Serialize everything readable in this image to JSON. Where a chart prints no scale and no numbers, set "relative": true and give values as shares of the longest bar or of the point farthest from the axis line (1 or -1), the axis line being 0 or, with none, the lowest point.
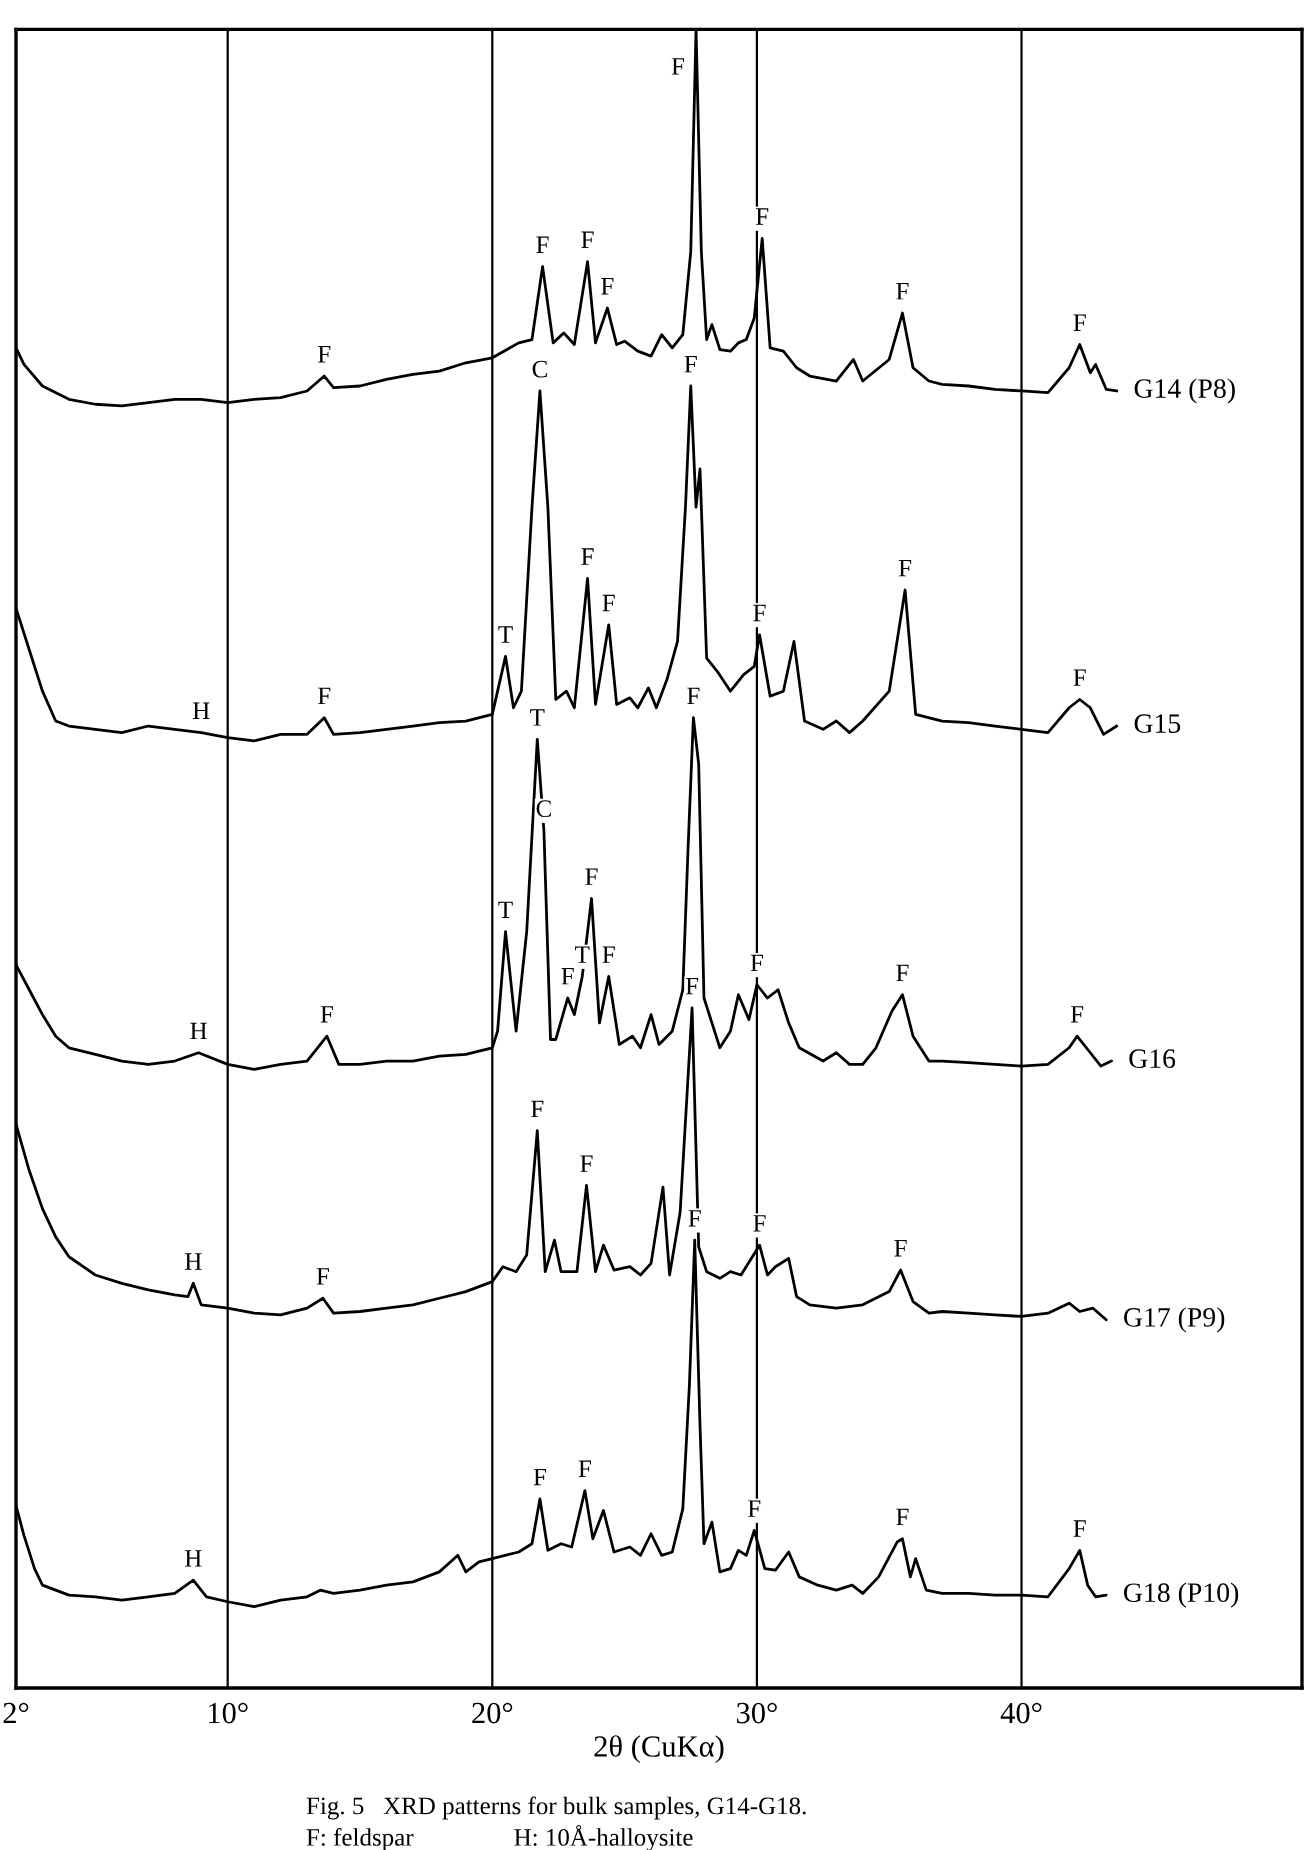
{
  "chart_data": {
    "type": "line",
    "relative": true,
    "xlabel": "2θ (CuKα)",
    "xlim": [
      2,
      50.6
    ],
    "xticks": [
      {
        "value": 2,
        "label": "2°"
      },
      {
        "value": 10,
        "label": "10°"
      },
      {
        "value": 20,
        "label": "20°"
      },
      {
        "value": 30,
        "label": "30°"
      },
      {
        "value": 40,
        "label": "40°"
      }
    ],
    "grid": "x",
    "legend": false,
    "marker": "none",
    "line_style": "solid",
    "series": [
      {
        "name": "G14 (P8)",
        "color": "#000000",
        "x": [
          2,
          2.3,
          3,
          4,
          5,
          6,
          7,
          8,
          9,
          10,
          11,
          12,
          13,
          13.65,
          14,
          15,
          16,
          17,
          18,
          19,
          20,
          21,
          21.5,
          21.9,
          22.3,
          22.7,
          23.1,
          23.6,
          23.9,
          24.35,
          24.7,
          25,
          25.5,
          26,
          26.4,
          26.8,
          27.2,
          27.5,
          27.7,
          27.9,
          28.1,
          28.3,
          28.6,
          29,
          29.3,
          29.6,
          29.9,
          30.2,
          30.5,
          31,
          31.5,
          32,
          33,
          33.65,
          34,
          35,
          35.5,
          35.9,
          36.5,
          37,
          38,
          39,
          40,
          41,
          41.8,
          42.2,
          42.6,
          42.8,
          43.2,
          43.6
        ],
        "values": [
          0.808,
          0.798,
          0.785,
          0.777,
          0.774,
          0.773,
          0.775,
          0.777,
          0.777,
          0.775,
          0.777,
          0.778,
          0.782,
          0.791,
          0.784,
          0.785,
          0.789,
          0.792,
          0.794,
          0.799,
          0.802,
          0.811,
          0.813,
          0.857,
          0.811,
          0.817,
          0.81,
          0.86,
          0.811,
          0.832,
          0.81,
          0.812,
          0.806,
          0.803,
          0.816,
          0.808,
          0.816,
          0.866,
          1.0,
          0.866,
          0.813,
          0.822,
          0.807,
          0.806,
          0.811,
          0.813,
          0.826,
          0.874,
          0.808,
          0.806,
          0.796,
          0.791,
          0.788,
          0.801,
          0.788,
          0.801,
          0.829,
          0.796,
          0.788,
          0.786,
          0.785,
          0.783,
          0.782,
          0.781,
          0.796,
          0.81,
          0.793,
          0.798,
          0.783,
          0.782
        ]
      },
      {
        "name": "G15",
        "color": "#000000",
        "x": [
          2,
          2.5,
          3,
          3.5,
          4,
          5,
          6,
          7,
          8,
          9,
          10,
          11,
          12,
          13,
          13.65,
          14,
          15,
          16,
          17,
          18,
          19,
          20,
          20.5,
          20.8,
          21.1,
          21.5,
          21.8,
          22.1,
          22.4,
          22.8,
          23.1,
          23.6,
          23.9,
          24.4,
          24.7,
          25.2,
          25.5,
          25.9,
          26.2,
          26.6,
          27,
          27.3,
          27.5,
          27.7,
          27.85,
          28.1,
          28.5,
          29,
          29.5,
          29.9,
          30.1,
          30.5,
          31,
          31.4,
          31.8,
          32.5,
          33,
          33.5,
          34,
          35,
          35.6,
          36,
          37,
          38,
          39,
          40,
          41,
          41.8,
          42.2,
          42.6,
          43.1,
          43.6
        ],
        "values": [
          0.651,
          0.626,
          0.601,
          0.583,
          0.58,
          0.578,
          0.576,
          0.58,
          0.578,
          0.576,
          0.573,
          0.571,
          0.575,
          0.575,
          0.585,
          0.575,
          0.576,
          0.578,
          0.58,
          0.582,
          0.583,
          0.587,
          0.622,
          0.591,
          0.601,
          0.712,
          0.782,
          0.712,
          0.596,
          0.601,
          0.591,
          0.669,
          0.593,
          0.641,
          0.593,
          0.597,
          0.591,
          0.603,
          0.591,
          0.608,
          0.631,
          0.712,
          0.785,
          0.712,
          0.735,
          0.621,
          0.613,
          0.601,
          0.611,
          0.616,
          0.635,
          0.598,
          0.601,
          0.631,
          0.583,
          0.578,
          0.583,
          0.576,
          0.583,
          0.601,
          0.662,
          0.587,
          0.583,
          0.582,
          0.58,
          0.578,
          0.576,
          0.591,
          0.596,
          0.591,
          0.575,
          0.58
        ]
      },
      {
        "name": "G16",
        "color": "#000000",
        "x": [
          2,
          2.5,
          3,
          3.5,
          4,
          5,
          6,
          7,
          8,
          8.9,
          10,
          11,
          12,
          13,
          13.75,
          14.2,
          15,
          16,
          17,
          18,
          19,
          20,
          20.2,
          20.5,
          20.9,
          21.3,
          21.7,
          21.95,
          22.2,
          22.4,
          22.85,
          23.1,
          23.4,
          23.75,
          24.05,
          24.4,
          24.8,
          25.3,
          25.6,
          26,
          26.3,
          26.8,
          27.2,
          27.4,
          27.6,
          27.8,
          28,
          28.3,
          28.6,
          29,
          29.3,
          29.7,
          30,
          30.4,
          30.8,
          31.2,
          31.6,
          32.5,
          33,
          33.5,
          34,
          34.5,
          35.1,
          35.5,
          35.9,
          36.5,
          37,
          38,
          39,
          40,
          41,
          41.8,
          42.1,
          42.6,
          43,
          43.4
        ],
        "values": [
          0.436,
          0.421,
          0.406,
          0.393,
          0.386,
          0.382,
          0.378,
          0.376,
          0.378,
          0.383,
          0.376,
          0.373,
          0.376,
          0.378,
          0.393,
          0.376,
          0.376,
          0.378,
          0.378,
          0.381,
          0.382,
          0.386,
          0.396,
          0.456,
          0.396,
          0.456,
          0.572,
          0.517,
          0.391,
          0.391,
          0.416,
          0.406,
          0.429,
          0.476,
          0.401,
          0.429,
          0.388,
          0.393,
          0.386,
          0.406,
          0.388,
          0.396,
          0.421,
          0.507,
          0.585,
          0.557,
          0.416,
          0.401,
          0.386,
          0.396,
          0.418,
          0.403,
          0.424,
          0.416,
          0.421,
          0.401,
          0.386,
          0.378,
          0.383,
          0.376,
          0.376,
          0.386,
          0.408,
          0.418,
          0.393,
          0.378,
          0.378,
          0.377,
          0.376,
          0.375,
          0.376,
          0.386,
          0.393,
          0.383,
          0.375,
          0.378
        ]
      },
      {
        "name": "G17 (P9)",
        "color": "#000000",
        "x": [
          2,
          2.5,
          3,
          3.5,
          4,
          5,
          6,
          7,
          8,
          8.5,
          8.7,
          9,
          10,
          11,
          12,
          13,
          13.6,
          14,
          15,
          16,
          17,
          18,
          19,
          20,
          20.4,
          20.9,
          21.3,
          21.7,
          22,
          22.35,
          22.6,
          23.2,
          23.56,
          23.9,
          24.2,
          24.6,
          25.2,
          25.6,
          26,
          26.45,
          26.7,
          27.1,
          27.55,
          27.8,
          28.1,
          28.6,
          29,
          29.4,
          30.1,
          30.4,
          30.7,
          31.2,
          31.5,
          32,
          33,
          34,
          35,
          35.43,
          35.9,
          36.5,
          37,
          38,
          39,
          40,
          41,
          41.8,
          42.2,
          42.7,
          43.2
        ],
        "values": [
          0.34,
          0.312,
          0.289,
          0.272,
          0.26,
          0.249,
          0.244,
          0.24,
          0.237,
          0.236,
          0.244,
          0.231,
          0.229,
          0.226,
          0.225,
          0.229,
          0.235,
          0.226,
          0.227,
          0.229,
          0.231,
          0.235,
          0.239,
          0.245,
          0.254,
          0.251,
          0.261,
          0.336,
          0.251,
          0.27,
          0.251,
          0.251,
          0.303,
          0.251,
          0.267,
          0.252,
          0.254,
          0.249,
          0.256,
          0.302,
          0.249,
          0.287,
          0.41,
          0.266,
          0.251,
          0.247,
          0.251,
          0.249,
          0.267,
          0.249,
          0.254,
          0.259,
          0.236,
          0.231,
          0.229,
          0.231,
          0.239,
          0.252,
          0.233,
          0.226,
          0.227,
          0.226,
          0.225,
          0.224,
          0.226,
          0.232,
          0.227,
          0.229,
          0.222
        ]
      },
      {
        "name": "G18 (P10)",
        "color": "#000000",
        "x": [
          2,
          2.3,
          2.7,
          3,
          4,
          5,
          6,
          7,
          8,
          8.7,
          9.2,
          10,
          11,
          12,
          13,
          13.5,
          14,
          15,
          16,
          17,
          18,
          18.7,
          19,
          19.5,
          20,
          21,
          21.5,
          21.8,
          22.1,
          22.6,
          23,
          23.5,
          23.8,
          24.2,
          24.6,
          25.2,
          25.6,
          26,
          26.4,
          26.8,
          27.2,
          27.45,
          27.65,
          27.85,
          28,
          28.3,
          28.6,
          29,
          29.3,
          29.6,
          29.9,
          30.3,
          30.7,
          31.2,
          31.6,
          32.3,
          33,
          33.6,
          34,
          34.6,
          35.3,
          35.5,
          35.8,
          36,
          36.4,
          37,
          38,
          39,
          40,
          41,
          41.8,
          42.2,
          42.5,
          42.8,
          43.2
        ],
        "values": [
          0.11,
          0.092,
          0.072,
          0.062,
          0.056,
          0.055,
          0.053,
          0.055,
          0.057,
          0.065,
          0.055,
          0.052,
          0.049,
          0.053,
          0.055,
          0.059,
          0.057,
          0.059,
          0.062,
          0.064,
          0.07,
          0.08,
          0.07,
          0.076,
          0.078,
          0.082,
          0.087,
          0.114,
          0.083,
          0.087,
          0.085,
          0.119,
          0.09,
          0.107,
          0.082,
          0.085,
          0.08,
          0.093,
          0.08,
          0.082,
          0.108,
          0.183,
          0.27,
          0.158,
          0.087,
          0.1,
          0.07,
          0.072,
          0.083,
          0.08,
          0.095,
          0.072,
          0.071,
          0.082,
          0.067,
          0.062,
          0.059,
          0.062,
          0.057,
          0.067,
          0.088,
          0.09,
          0.067,
          0.078,
          0.059,
          0.057,
          0.057,
          0.056,
          0.056,
          0.055,
          0.072,
          0.083,
          0.062,
          0.055,
          0.056
        ]
      }
    ],
    "annotations": [
      {
        "text": "F",
        "x": 13.65,
        "y": 0.791
      },
      {
        "text": "F",
        "x": 21.9,
        "y": 0.857
      },
      {
        "text": "F",
        "x": 23.6,
        "y": 0.86
      },
      {
        "text": "F",
        "x": 24.35,
        "y": 0.832
      },
      {
        "text": "F",
        "x": 27.7,
        "y": 1.0
      },
      {
        "text": "F",
        "x": 30.2,
        "y": 0.874
      },
      {
        "text": "F",
        "x": 35.5,
        "y": 0.829
      },
      {
        "text": "F",
        "x": 42.2,
        "y": 0.81
      },
      {
        "text": "H",
        "x": 9,
        "y": 0.576
      },
      {
        "text": "F",
        "x": 13.65,
        "y": 0.585
      },
      {
        "text": "T",
        "x": 20.5,
        "y": 0.622
      },
      {
        "text": "C",
        "x": 21.8,
        "y": 0.782
      },
      {
        "text": "F",
        "x": 23.6,
        "y": 0.669
      },
      {
        "text": "F",
        "x": 24.4,
        "y": 0.641
      },
      {
        "text": "F",
        "x": 27.5,
        "y": 0.785
      },
      {
        "text": "F",
        "x": 30.1,
        "y": 0.635
      },
      {
        "text": "F",
        "x": 35.6,
        "y": 0.662
      },
      {
        "text": "F",
        "x": 42.2,
        "y": 0.596
      },
      {
        "text": "H",
        "x": 8.9,
        "y": 0.383
      },
      {
        "text": "F",
        "x": 13.75,
        "y": 0.393
      },
      {
        "text": "T",
        "x": 20.5,
        "y": 0.456
      },
      {
        "text": "T",
        "x": 21.7,
        "y": 0.572
      },
      {
        "text": "C",
        "x": 21.95,
        "y": 0.517
      },
      {
        "text": "T",
        "x": 23.4,
        "y": 0.429
      },
      {
        "text": "F",
        "x": 22.85,
        "y": 0.416
      },
      {
        "text": "F",
        "x": 23.75,
        "y": 0.476
      },
      {
        "text": "F",
        "x": 24.4,
        "y": 0.429
      },
      {
        "text": "F",
        "x": 27.6,
        "y": 0.585
      },
      {
        "text": "F",
        "x": 30,
        "y": 0.424
      },
      {
        "text": "F",
        "x": 35.5,
        "y": 0.418
      },
      {
        "text": "F",
        "x": 42.1,
        "y": 0.393
      },
      {
        "text": "H",
        "x": 8.7,
        "y": 0.244
      },
      {
        "text": "F",
        "x": 13.6,
        "y": 0.235
      },
      {
        "text": "F",
        "x": 21.7,
        "y": 0.336
      },
      {
        "text": "F",
        "x": 23.56,
        "y": 0.303
      },
      {
        "text": "F",
        "x": 27.55,
        "y": 0.41
      },
      {
        "text": "F",
        "x": 30.1,
        "y": 0.267
      },
      {
        "text": "F",
        "x": 35.43,
        "y": 0.252
      },
      {
        "text": "H",
        "x": 8.7,
        "y": 0.065
      },
      {
        "text": "F",
        "x": 21.8,
        "y": 0.114
      },
      {
        "text": "F",
        "x": 23.5,
        "y": 0.119
      },
      {
        "text": "F",
        "x": 27.65,
        "y": 0.27
      },
      {
        "text": "F",
        "x": 29.9,
        "y": 0.095
      },
      {
        "text": "F",
        "x": 35.5,
        "y": 0.09
      },
      {
        "text": "F",
        "x": 42.2,
        "y": 0.083
      },
      "Fig. 5   XRD patterns for bulk samples, G14-G18.",
      "F: feldspar                H: 10Å-halloysite"
    ]
  }
}
